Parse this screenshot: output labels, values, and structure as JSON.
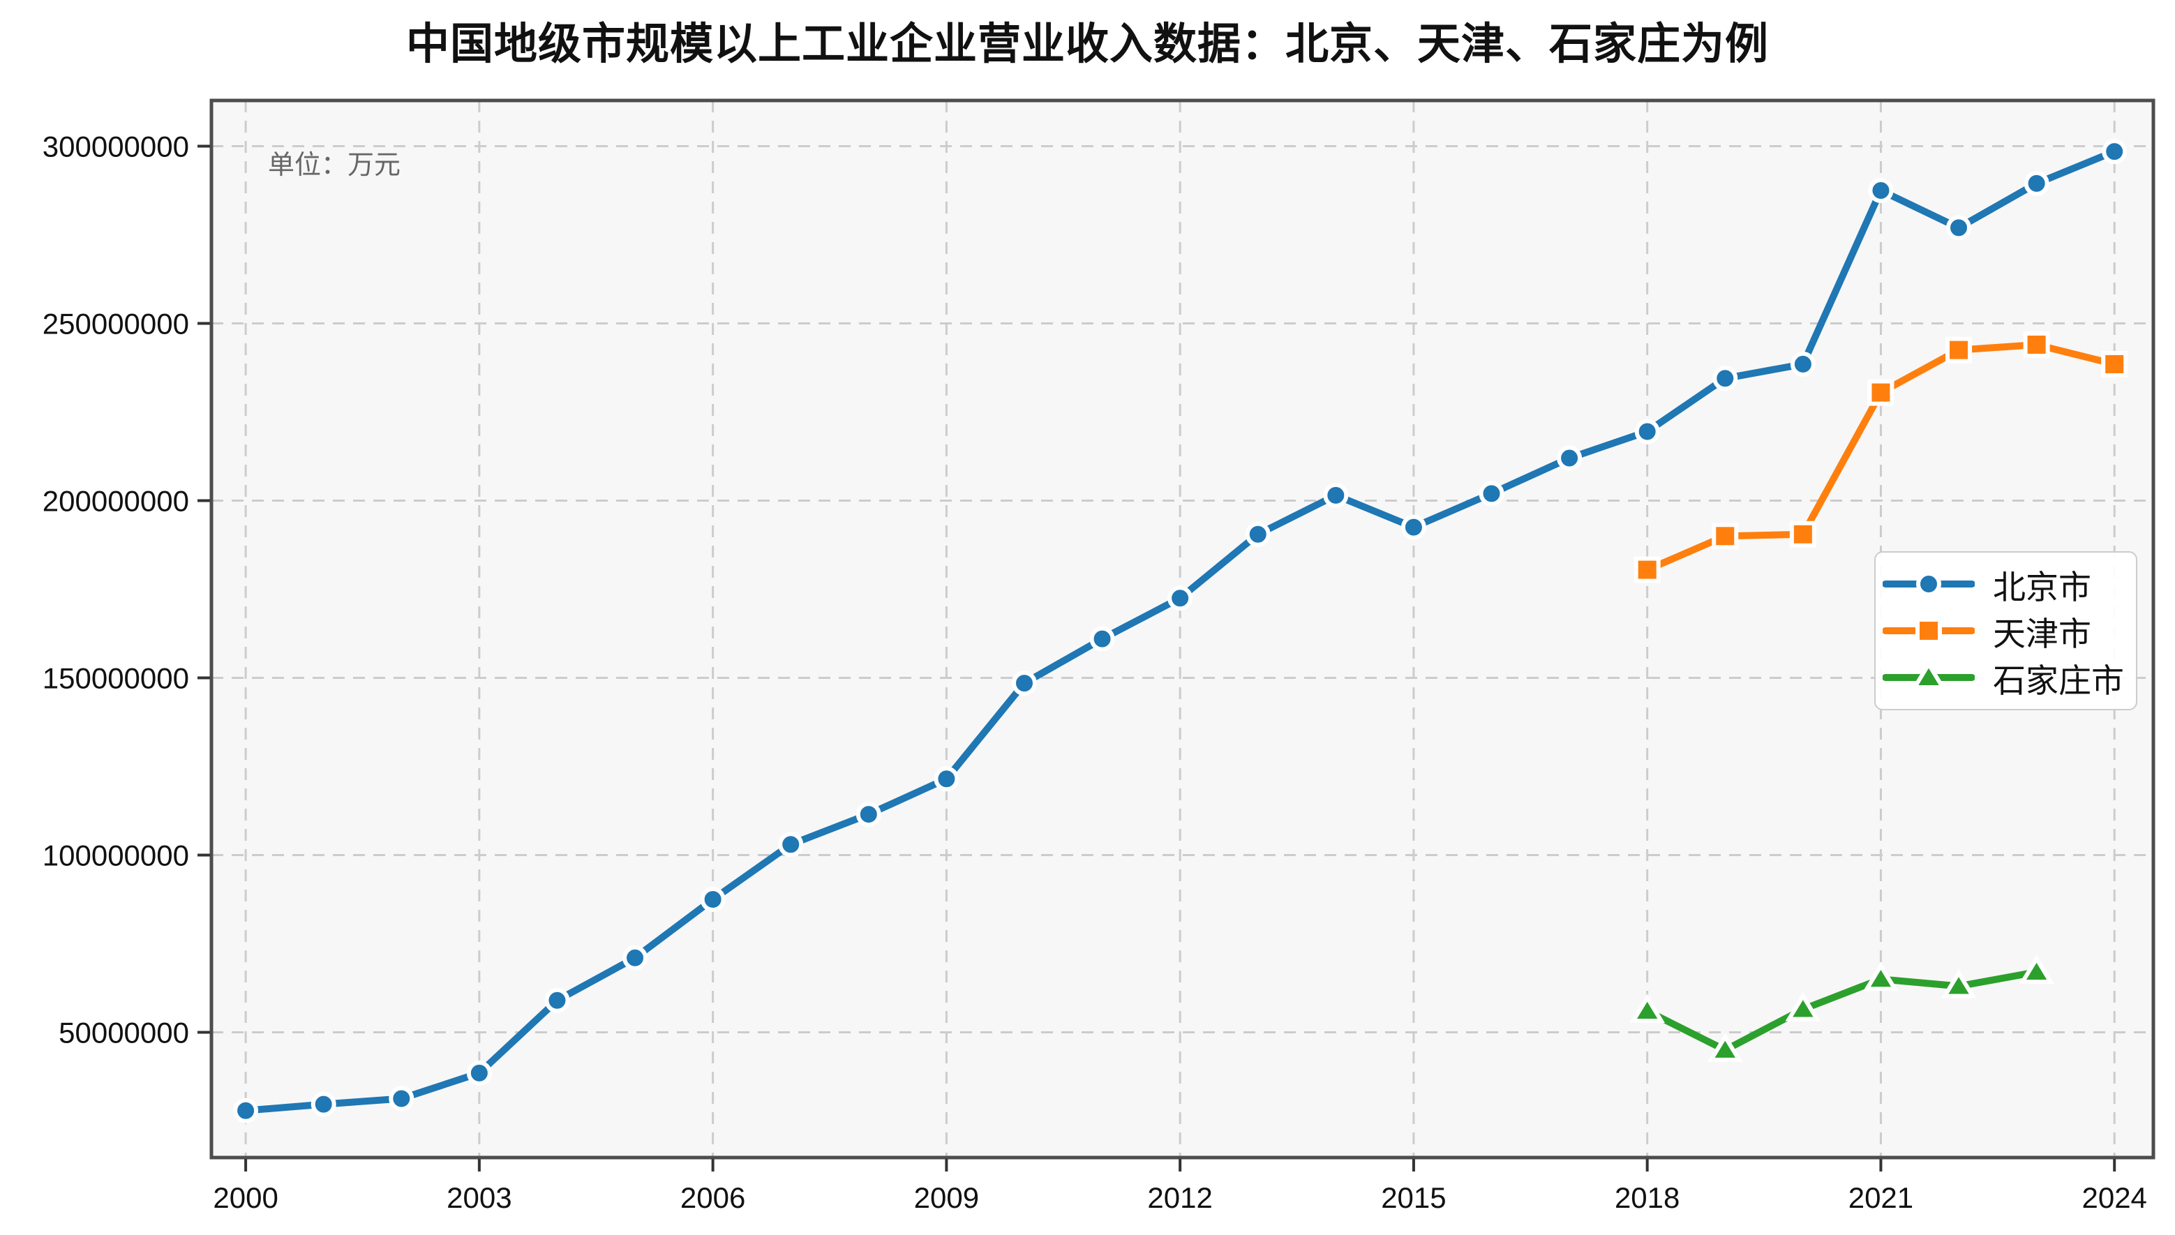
{
  "title": "中国地级市规模以上工业企业营业收入数据：北京、天津、石家庄为例",
  "unit_annotation": "单位：万元",
  "colors": {
    "beijing": "#1f77b4",
    "tianjin": "#ff7f0e",
    "shijiazhuang": "#2ca02c",
    "grid": "#cccccc",
    "spine": "#4d4d4d",
    "tick": "#333333",
    "tick_label": "#111111",
    "plot_background": "#f7f7f7",
    "figure_background": "#ffffff",
    "unit_text": "#666666",
    "marker_edge": "#ffffff"
  },
  "legend": {
    "items": [
      {
        "label": "北京市",
        "marker": "circle",
        "color": "#1f77b4"
      },
      {
        "label": "天津市",
        "marker": "square",
        "color": "#ff7f0e"
      },
      {
        "label": "石家庄市",
        "marker": "triangle",
        "color": "#2ca02c"
      }
    ]
  },
  "chart_data": {
    "type": "line",
    "title": "中国地级市规模以上工业企业营业收入数据：北京、天津、石家庄为例",
    "unit_annotation": "单位：万元",
    "xlabel": "",
    "ylabel": "",
    "x_ticks": [
      2000,
      2003,
      2006,
      2009,
      2012,
      2015,
      2018,
      2021,
      2024
    ],
    "y_ticks": [
      50000000,
      100000000,
      150000000,
      200000000,
      250000000,
      300000000
    ],
    "xlim": [
      1999.56,
      2024.5
    ],
    "ylim": [
      14660000,
      312900000
    ],
    "grid": true,
    "grid_style": "dashed",
    "legend_position": "center-right",
    "series": [
      {
        "name": "北京市",
        "marker": "circle",
        "color": "#1f77b4",
        "x": [
          2000,
          2001,
          2002,
          2003,
          2004,
          2005,
          2006,
          2007,
          2008,
          2009,
          2010,
          2011,
          2012,
          2013,
          2014,
          2015,
          2016,
          2017,
          2018,
          2019,
          2020,
          2021,
          2022,
          2023,
          2024
        ],
        "values": [
          27900000,
          29700000,
          31300000,
          38500000,
          59000000,
          71000000,
          87500000,
          103000000,
          111500000,
          121500000,
          148500000,
          161000000,
          172500000,
          190500000,
          201500000,
          192500000,
          202000000,
          212000000,
          219500000,
          234500000,
          238500000,
          287500000,
          277000000,
          289500000,
          298500000
        ]
      },
      {
        "name": "天津市",
        "marker": "square",
        "color": "#ff7f0e",
        "x": [
          2018,
          2019,
          2020,
          2021,
          2022,
          2023,
          2024
        ],
        "values": [
          180500000,
          190000000,
          190500000,
          230500000,
          242500000,
          244000000,
          238500000
        ]
      },
      {
        "name": "石家庄市",
        "marker": "triangle",
        "color": "#2ca02c",
        "x": [
          2018,
          2019,
          2020,
          2021,
          2022,
          2023
        ],
        "values": [
          56000000,
          45000000,
          56500000,
          65000000,
          63000000,
          67000000
        ]
      }
    ]
  }
}
